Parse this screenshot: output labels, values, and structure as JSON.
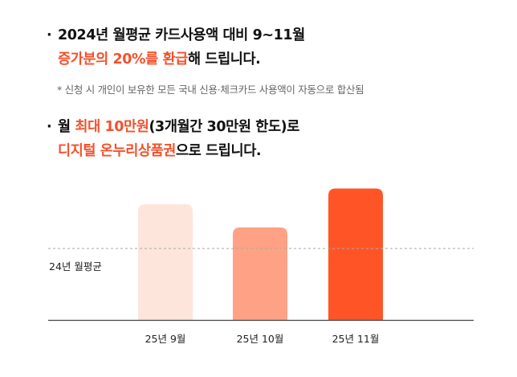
{
  "section1": {
    "line1": "2024년 월평균 카드사용액 대비 9~11월",
    "line2_accent": "증가분의 20%를 환급",
    "line2_rest": "해 드립니다.",
    "note": "* 신청 시 개인이 보유한 모든 국내 신용·체크카드 사용액이 자동으로 합산됨"
  },
  "section2": {
    "line1_prefix": "월 ",
    "line1_accent": "최대 10만원",
    "line1_rest": "(3개월간 30만원 한도)로",
    "line2_accent": "디지털 온누리상품권",
    "line2_rest": "으로 드립니다."
  },
  "bullet": "·",
  "chart_data": {
    "type": "bar",
    "categories": [
      "25년 9월",
      "25년 10월",
      "25년 11월"
    ],
    "values": [
      1.1,
      0.88,
      1.25
    ],
    "reference_line": {
      "label": "24년 월평균",
      "value": 0.68
    },
    "ylim": [
      0,
      1.3
    ],
    "bar_colors": [
      "#fde5db",
      "#ffa184",
      "#ff5526"
    ],
    "reference_color": "#aaaaaa",
    "axis_color": "#444444"
  }
}
